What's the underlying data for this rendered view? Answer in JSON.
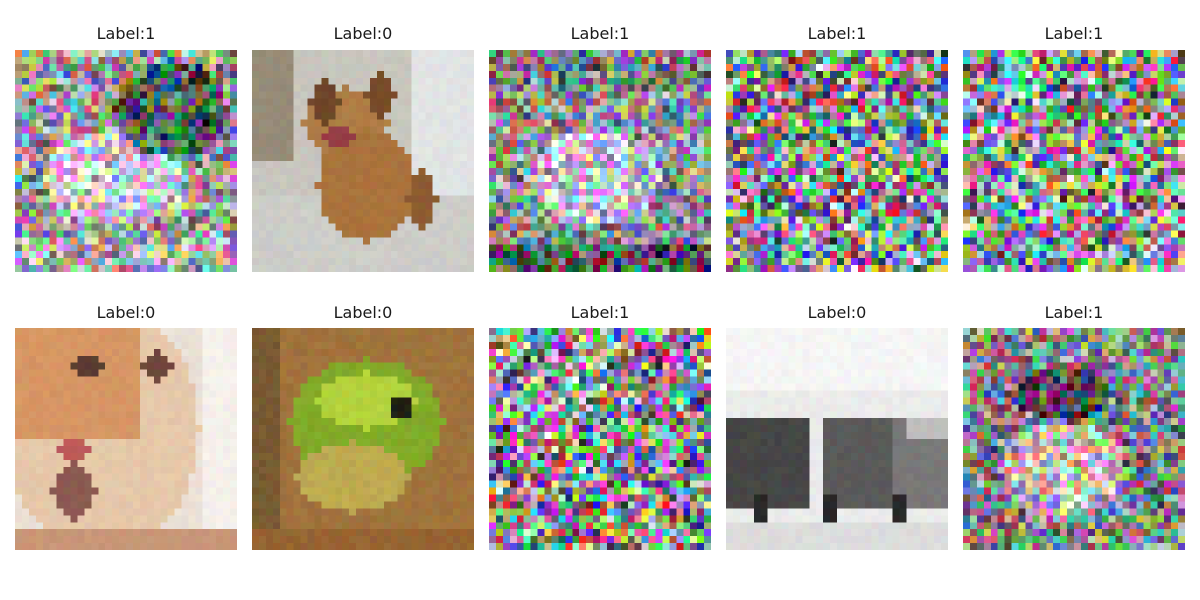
{
  "figure": {
    "rows": 2,
    "cols": 5,
    "images": [
      {
        "label": "Label:1",
        "kind": "noisy",
        "subject": "blurred object under heavy color noise"
      },
      {
        "label": "Label:0",
        "kind": "dog",
        "subject": "tan puppy sitting on a floor indoors"
      },
      {
        "label": "Label:1",
        "kind": "noisy",
        "subject": "faint object under heavy color noise"
      },
      {
        "label": "Label:1",
        "kind": "pure-noise",
        "subject": "random color noise"
      },
      {
        "label": "Label:1",
        "kind": "pure-noise",
        "subject": "random color noise"
      },
      {
        "label": "Label:0",
        "kind": "cat",
        "subject": "close-up of a ginger and white cat"
      },
      {
        "label": "Label:0",
        "kind": "frog",
        "subject": "green frog on brown background"
      },
      {
        "label": "Label:1",
        "kind": "pure-noise",
        "subject": "random color noise"
      },
      {
        "label": "Label:0",
        "kind": "truck",
        "subject": "grayscale old truck"
      },
      {
        "label": "Label:1",
        "kind": "noisy",
        "subject": "faint face under heavy color noise"
      }
    ]
  }
}
